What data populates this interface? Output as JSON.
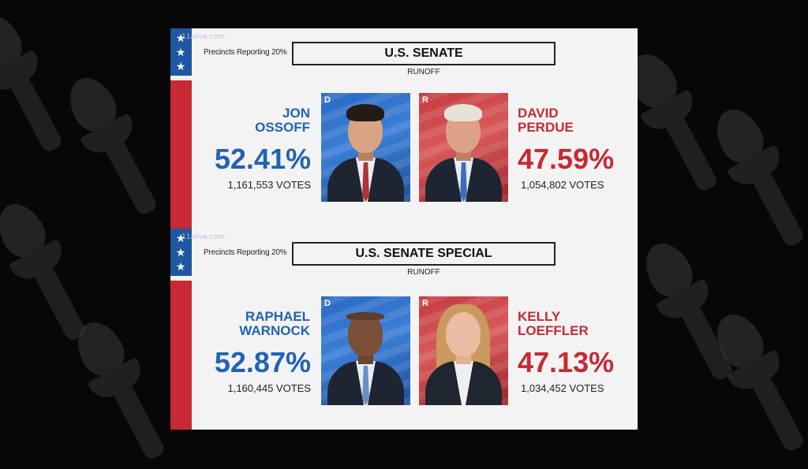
{
  "watermark": "11alive.com",
  "races": [
    {
      "precincts": "Precincts Reporting 20%",
      "title": "U.S. SENATE",
      "subtitle": "RUNOFF",
      "dem": {
        "party": "D",
        "name_line1": "JON",
        "name_line2": "OSSOFF",
        "pct": "52.41%",
        "votes": "1,161,553 VOTES"
      },
      "rep": {
        "party": "R",
        "name_line1": "DAVID",
        "name_line2": "PERDUE",
        "pct": "47.59%",
        "votes": "1,054,802 VOTES"
      }
    },
    {
      "precincts": "Precincts Reporting 20%",
      "title": "U.S. SENATE SPECIAL",
      "subtitle": "RUNOFF",
      "dem": {
        "party": "D",
        "name_line1": "RAPHAEL",
        "name_line2": "WARNOCK",
        "pct": "52.87%",
        "votes": "1,160,445 VOTES"
      },
      "rep": {
        "party": "R",
        "name_line1": "KELLY",
        "name_line2": "LOEFFLER",
        "pct": "47.13%",
        "votes": "1,034,452 VOTES"
      }
    }
  ],
  "colors": {
    "democrat": "#1f63b5",
    "republican": "#c72a33",
    "card_bg": "#f4f3f4",
    "background": "#070707"
  },
  "icons": {
    "star": "star-icon",
    "torch": "torch-icon"
  }
}
